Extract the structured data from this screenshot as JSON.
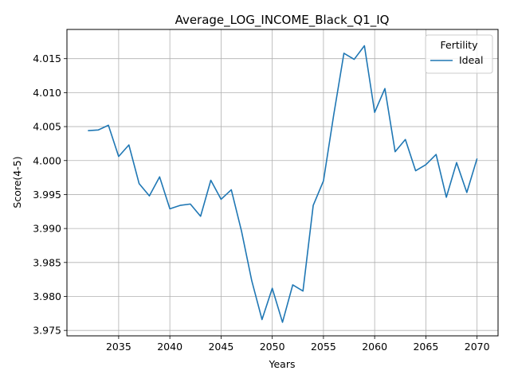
{
  "chart_data": {
    "type": "line",
    "title": "Average_LOG_INCOME_Black_Q1_IQ",
    "xlabel": "Years",
    "ylabel": "Score(4-5)",
    "xlim": [
      2029.95,
      2072.05
    ],
    "ylim": [
      3.9742,
      4.0193
    ],
    "x_ticks": [
      2035,
      2040,
      2045,
      2050,
      2055,
      2060,
      2065,
      2070
    ],
    "y_ticks": [
      3.975,
      3.98,
      3.985,
      3.99,
      3.995,
      4.0,
      4.005,
      4.01,
      4.015
    ],
    "y_tick_labels": [
      "3.975",
      "3.980",
      "3.985",
      "3.990",
      "3.995",
      "4.000",
      "4.005",
      "4.010",
      "4.015"
    ],
    "grid": true,
    "legend": {
      "title": "Fertility",
      "position": "top-right"
    },
    "series": [
      {
        "name": "Ideal",
        "color": "#1f77b4",
        "x": [
          2032,
          2033,
          2034,
          2035,
          2036,
          2037,
          2038,
          2039,
          2040,
          2041,
          2042,
          2043,
          2044,
          2045,
          2046,
          2047,
          2048,
          2049,
          2050,
          2051,
          2052,
          2053,
          2054,
          2055,
          2056,
          2057,
          2058,
          2059,
          2060,
          2061,
          2062,
          2063,
          2064,
          2065,
          2066,
          2067,
          2068,
          2069,
          2070
        ],
        "values": [
          4.0044,
          4.0045,
          4.0052,
          4.0006,
          4.0023,
          3.9966,
          3.9948,
          3.9976,
          3.9929,
          3.9934,
          3.9936,
          3.9918,
          3.9971,
          3.9943,
          3.9957,
          3.9896,
          3.9823,
          3.9766,
          3.9812,
          3.9762,
          3.9817,
          3.9808,
          3.9934,
          3.997,
          4.0067,
          4.0158,
          4.0149,
          4.0169,
          4.0071,
          4.0106,
          4.0013,
          4.0031,
          3.9985,
          3.9994,
          4.0009,
          3.9946,
          3.9997,
          3.9953,
          4.0003
        ]
      }
    ]
  }
}
